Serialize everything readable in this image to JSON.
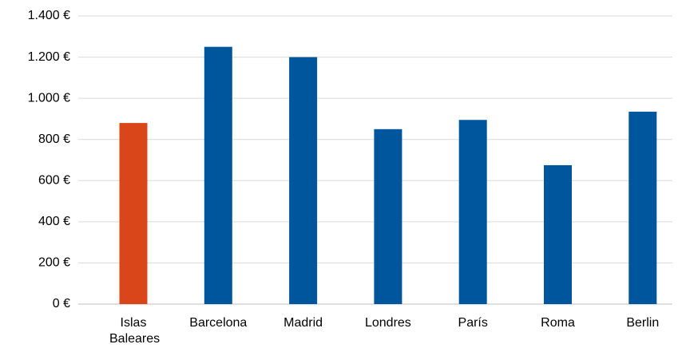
{
  "chart_data": {
    "type": "bar",
    "categories": [
      "Islas Baleares",
      "Barcelona",
      "Madrid",
      "Londres",
      "París",
      "Roma",
      "Berlin"
    ],
    "values": [
      880,
      1250,
      1200,
      850,
      895,
      675,
      935
    ],
    "colors": [
      "#d9461a",
      "#00569d",
      "#00569d",
      "#00569d",
      "#00569d",
      "#00569d",
      "#00569d"
    ],
    "ylim": [
      0,
      1400
    ],
    "yticks": [
      {
        "value": 0,
        "label": "0 €"
      },
      {
        "value": 200,
        "label": "200 €"
      },
      {
        "value": 400,
        "label": "400 €"
      },
      {
        "value": 600,
        "label": "600 €"
      },
      {
        "value": 800,
        "label": "800 €"
      },
      {
        "value": 1000,
        "label": "1.000 €"
      },
      {
        "value": 1200,
        "label": "1.200 €"
      },
      {
        "value": 1400,
        "label": "1.400 €"
      }
    ],
    "grid": true
  }
}
